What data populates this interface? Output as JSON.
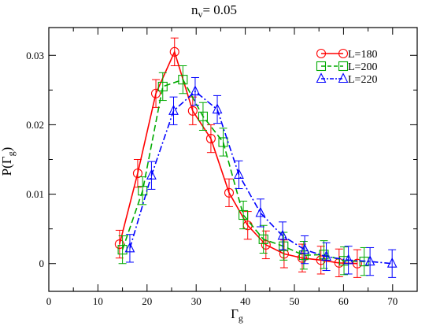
{
  "chart_data": {
    "type": "line",
    "title_main": "n",
    "title_sub": "v",
    "title_rest": "= 0.05",
    "xlabel_main": "Γ",
    "xlabel_sub": "g",
    "ylabel_main": "P(Γ",
    "ylabel_sub": "g",
    "ylabel_end": ")",
    "xlim": [
      0,
      75
    ],
    "ylim": [
      -0.004,
      0.034
    ],
    "xticks": [
      0,
      10,
      20,
      30,
      40,
      50,
      60,
      70
    ],
    "xtick_labels": [
      "0",
      "10",
      "20",
      "30",
      "40",
      "50",
      "60",
      "70"
    ],
    "yticks": [
      0,
      0.01,
      0.02,
      0.03
    ],
    "ytick_labels": [
      "0",
      "0.01",
      "0.02",
      "0.03"
    ],
    "legend_position": "top-right",
    "series": [
      {
        "name": "L=180",
        "color": "#ff0000",
        "marker": "circle",
        "dash": "",
        "x": [
          14.4,
          18.1,
          21.8,
          25.6,
          29.3,
          33.0,
          36.7,
          40.5,
          44.2,
          47.9,
          51.6,
          55.4,
          59.1,
          62.8
        ],
        "y": [
          0.0028,
          0.013,
          0.0245,
          0.0305,
          0.022,
          0.018,
          0.0102,
          0.0055,
          0.0027,
          0.0014,
          0.0008,
          0.0005,
          0.0001,
          0.0
        ],
        "err": [
          0.002,
          0.002,
          0.002,
          0.002,
          0.002,
          0.002,
          0.002,
          0.002,
          0.002,
          0.002,
          0.002,
          0.002,
          0.002,
          0.002
        ]
      },
      {
        "name": "L=200",
        "color": "#00aa00",
        "marker": "square",
        "dash": "8,4",
        "x": [
          15.0,
          19.1,
          23.2,
          27.3,
          31.4,
          35.5,
          39.6,
          43.7,
          47.8,
          51.9,
          56.0,
          60.1,
          64.2
        ],
        "y": [
          0.002,
          0.0105,
          0.0255,
          0.0265,
          0.0212,
          0.0175,
          0.007,
          0.0035,
          0.0025,
          0.0012,
          0.0013,
          0.0004,
          0.0003
        ],
        "err": [
          0.002,
          0.002,
          0.002,
          0.002,
          0.002,
          0.002,
          0.002,
          0.002,
          0.002,
          0.002,
          0.002,
          0.002,
          0.002
        ]
      },
      {
        "name": "L=220",
        "color": "#0000ff",
        "marker": "triangle",
        "dash": "8,3,2,3",
        "x": [
          16.5,
          20.9,
          25.4,
          29.8,
          34.3,
          38.7,
          43.1,
          47.6,
          52.1,
          56.5,
          61.0,
          65.4,
          69.9
        ],
        "y": [
          0.0022,
          0.0127,
          0.022,
          0.0248,
          0.0222,
          0.0128,
          0.0073,
          0.004,
          0.002,
          0.001,
          0.0005,
          0.0003,
          0.0
        ],
        "err": [
          0.002,
          0.002,
          0.002,
          0.002,
          0.002,
          0.002,
          0.002,
          0.002,
          0.002,
          0.002,
          0.002,
          0.002,
          0.002
        ]
      }
    ]
  }
}
